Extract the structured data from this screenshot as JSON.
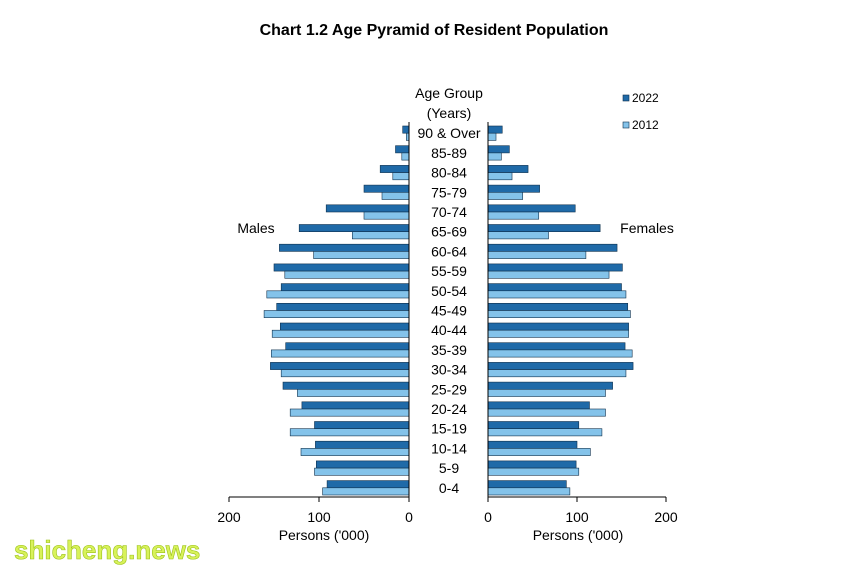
{
  "chart_data": {
    "type": "bar",
    "title": "Chart 1.2 Age Pyramid of Resident Population",
    "age_group_header_line1": "Age Group",
    "age_group_header_line2": "(Years)",
    "left_panel_label": "Males",
    "right_panel_label": "Females",
    "xlabel_left": "Persons ('000)",
    "xlabel_right": "Persons ('000)",
    "xlim": [
      0,
      200
    ],
    "left_ticks": [
      "200",
      "100",
      "0"
    ],
    "right_ticks": [
      "0",
      "100",
      "200"
    ],
    "legend_position": "top-right",
    "categories": [
      "90 & Over",
      "85-89",
      "80-84",
      "75-79",
      "70-74",
      "65-69",
      "60-64",
      "55-59",
      "50-54",
      "45-49",
      "40-44",
      "35-39",
      "30-34",
      "25-29",
      "20-24",
      "15-19",
      "10-14",
      "5-9",
      "0-4"
    ],
    "series": [
      {
        "name": "2022",
        "color": "#1f6aa8",
        "males": [
          7,
          15,
          32,
          50,
          92,
          122,
          144,
          150,
          142,
          147,
          143,
          137,
          154,
          140,
          119,
          105,
          104,
          103,
          91
        ],
        "females": [
          16,
          24,
          45,
          58,
          98,
          126,
          145,
          151,
          150,
          157,
          158,
          154,
          163,
          140,
          114,
          102,
          100,
          99,
          88
        ]
      },
      {
        "name": "2012",
        "color": "#84c3ea",
        "males": [
          3,
          8,
          18,
          30,
          50,
          63,
          106,
          138,
          158,
          161,
          152,
          153,
          142,
          124,
          132,
          132,
          120,
          105,
          96
        ],
        "females": [
          9,
          15,
          27,
          39,
          57,
          68,
          110,
          136,
          155,
          160,
          158,
          162,
          155,
          132,
          132,
          128,
          115,
          102,
          92
        ]
      }
    ]
  },
  "watermark": "shicheng.news"
}
